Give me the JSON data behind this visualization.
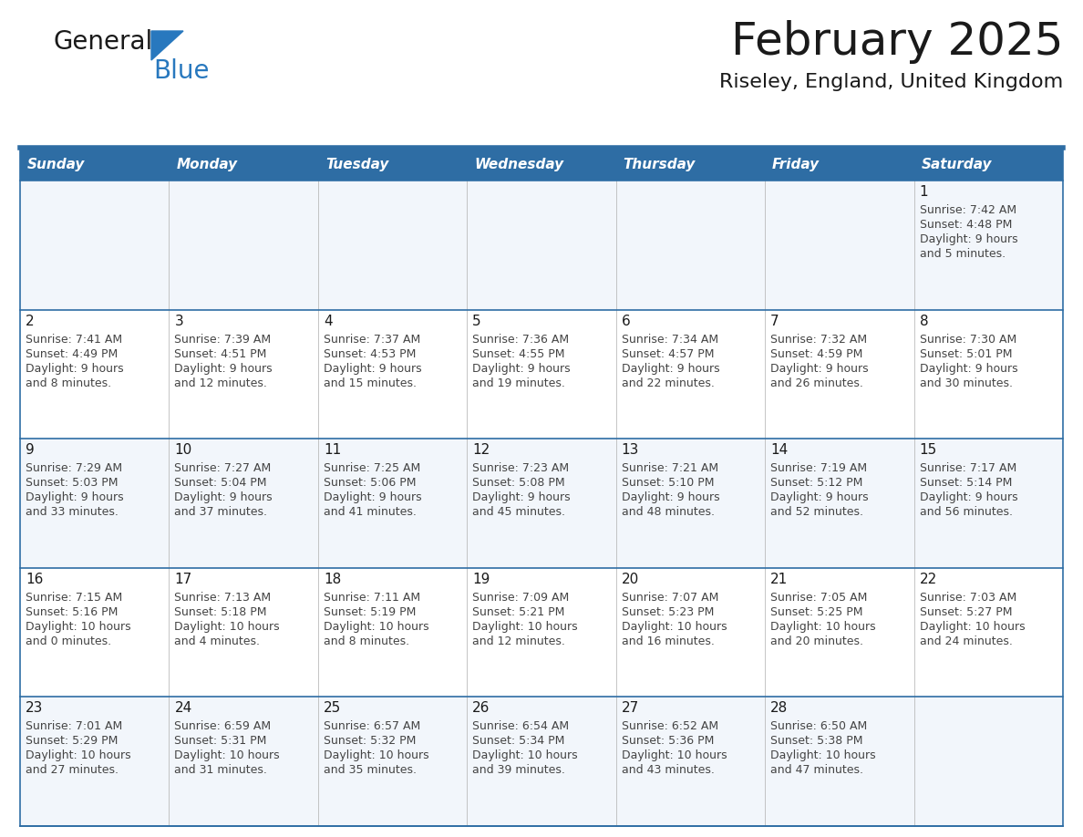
{
  "title": "February 2025",
  "subtitle": "Riseley, England, United Kingdom",
  "header_color": "#2e6da4",
  "header_text_color": "#ffffff",
  "row_bg_colors": [
    "#f2f6fb",
    "#ffffff"
  ],
  "separator_color": "#2e6da4",
  "days_of_week": [
    "Sunday",
    "Monday",
    "Tuesday",
    "Wednesday",
    "Thursday",
    "Friday",
    "Saturday"
  ],
  "title_color": "#1a1a1a",
  "subtitle_color": "#1a1a1a",
  "cell_text_color": "#444444",
  "day_num_color": "#1a1a1a",
  "logo_text_color": "#1a1a1a",
  "logo_blue_color": "#2878be",
  "calendar_data": [
    [
      null,
      null,
      null,
      null,
      null,
      null,
      {
        "day": "1",
        "sunrise": "7:42 AM",
        "sunset": "4:48 PM",
        "daylight": "9 hours and 5 minutes."
      }
    ],
    [
      {
        "day": "2",
        "sunrise": "7:41 AM",
        "sunset": "4:49 PM",
        "daylight": "9 hours and 8 minutes."
      },
      {
        "day": "3",
        "sunrise": "7:39 AM",
        "sunset": "4:51 PM",
        "daylight": "9 hours and 12 minutes."
      },
      {
        "day": "4",
        "sunrise": "7:37 AM",
        "sunset": "4:53 PM",
        "daylight": "9 hours and 15 minutes."
      },
      {
        "day": "5",
        "sunrise": "7:36 AM",
        "sunset": "4:55 PM",
        "daylight": "9 hours and 19 minutes."
      },
      {
        "day": "6",
        "sunrise": "7:34 AM",
        "sunset": "4:57 PM",
        "daylight": "9 hours and 22 minutes."
      },
      {
        "day": "7",
        "sunrise": "7:32 AM",
        "sunset": "4:59 PM",
        "daylight": "9 hours and 26 minutes."
      },
      {
        "day": "8",
        "sunrise": "7:30 AM",
        "sunset": "5:01 PM",
        "daylight": "9 hours and 30 minutes."
      }
    ],
    [
      {
        "day": "9",
        "sunrise": "7:29 AM",
        "sunset": "5:03 PM",
        "daylight": "9 hours and 33 minutes."
      },
      {
        "day": "10",
        "sunrise": "7:27 AM",
        "sunset": "5:04 PM",
        "daylight": "9 hours and 37 minutes."
      },
      {
        "day": "11",
        "sunrise": "7:25 AM",
        "sunset": "5:06 PM",
        "daylight": "9 hours and 41 minutes."
      },
      {
        "day": "12",
        "sunrise": "7:23 AM",
        "sunset": "5:08 PM",
        "daylight": "9 hours and 45 minutes."
      },
      {
        "day": "13",
        "sunrise": "7:21 AM",
        "sunset": "5:10 PM",
        "daylight": "9 hours and 48 minutes."
      },
      {
        "day": "14",
        "sunrise": "7:19 AM",
        "sunset": "5:12 PM",
        "daylight": "9 hours and 52 minutes."
      },
      {
        "day": "15",
        "sunrise": "7:17 AM",
        "sunset": "5:14 PM",
        "daylight": "9 hours and 56 minutes."
      }
    ],
    [
      {
        "day": "16",
        "sunrise": "7:15 AM",
        "sunset": "5:16 PM",
        "daylight": "10 hours and 0 minutes."
      },
      {
        "day": "17",
        "sunrise": "7:13 AM",
        "sunset": "5:18 PM",
        "daylight": "10 hours and 4 minutes."
      },
      {
        "day": "18",
        "sunrise": "7:11 AM",
        "sunset": "5:19 PM",
        "daylight": "10 hours and 8 minutes."
      },
      {
        "day": "19",
        "sunrise": "7:09 AM",
        "sunset": "5:21 PM",
        "daylight": "10 hours and 12 minutes."
      },
      {
        "day": "20",
        "sunrise": "7:07 AM",
        "sunset": "5:23 PM",
        "daylight": "10 hours and 16 minutes."
      },
      {
        "day": "21",
        "sunrise": "7:05 AM",
        "sunset": "5:25 PM",
        "daylight": "10 hours and 20 minutes."
      },
      {
        "day": "22",
        "sunrise": "7:03 AM",
        "sunset": "5:27 PM",
        "daylight": "10 hours and 24 minutes."
      }
    ],
    [
      {
        "day": "23",
        "sunrise": "7:01 AM",
        "sunset": "5:29 PM",
        "daylight": "10 hours and 27 minutes."
      },
      {
        "day": "24",
        "sunrise": "6:59 AM",
        "sunset": "5:31 PM",
        "daylight": "10 hours and 31 minutes."
      },
      {
        "day": "25",
        "sunrise": "6:57 AM",
        "sunset": "5:32 PM",
        "daylight": "10 hours and 35 minutes."
      },
      {
        "day": "26",
        "sunrise": "6:54 AM",
        "sunset": "5:34 PM",
        "daylight": "10 hours and 39 minutes."
      },
      {
        "day": "27",
        "sunrise": "6:52 AM",
        "sunset": "5:36 PM",
        "daylight": "10 hours and 43 minutes."
      },
      {
        "day": "28",
        "sunrise": "6:50 AM",
        "sunset": "5:38 PM",
        "daylight": "10 hours and 47 minutes."
      },
      null
    ]
  ],
  "figsize": [
    11.88,
    9.18
  ],
  "dpi": 100,
  "title_fontsize": 36,
  "subtitle_fontsize": 16,
  "header_fontsize": 11,
  "day_num_fontsize": 11,
  "cell_fontsize": 9
}
